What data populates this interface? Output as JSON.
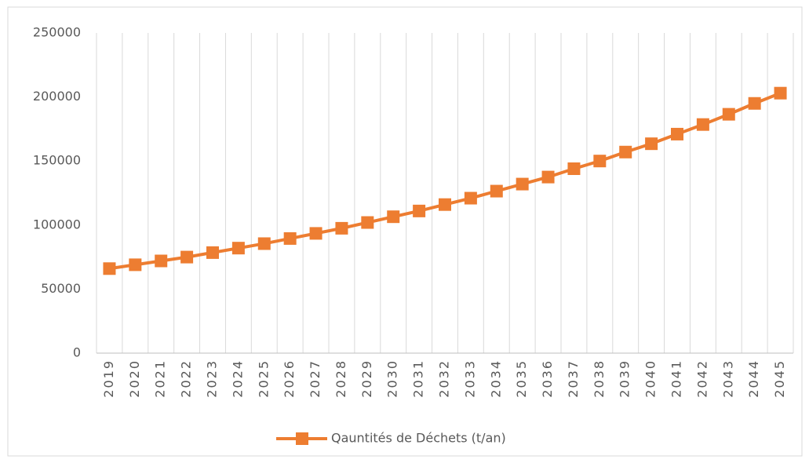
{
  "chart_data": {
    "type": "line",
    "categories": [
      "2019",
      "2020",
      "2021",
      "2022",
      "2023",
      "2024",
      "2025",
      "2026",
      "2027",
      "2028",
      "2029",
      "2030",
      "2031",
      "2032",
      "2033",
      "2034",
      "2035",
      "2036",
      "2037",
      "2038",
      "2039",
      "2040",
      "2041",
      "2042",
      "2043",
      "2044",
      "2045"
    ],
    "series": [
      {
        "name": "Qauntités de Déchets (t/an)",
        "color": "#ed7d31",
        "values": [
          66000,
          69000,
          72000,
          75000,
          78500,
          82000,
          85500,
          89500,
          93500,
          97500,
          102000,
          106500,
          111000,
          116000,
          121000,
          126500,
          132000,
          137500,
          144000,
          150000,
          157000,
          163500,
          171000,
          178500,
          186500,
          195000,
          203000
        ]
      }
    ],
    "ylim": [
      0,
      250000
    ],
    "yticks": [
      0,
      50000,
      100000,
      150000,
      200000,
      250000
    ],
    "grid": "vertical",
    "legend": "bottom"
  }
}
